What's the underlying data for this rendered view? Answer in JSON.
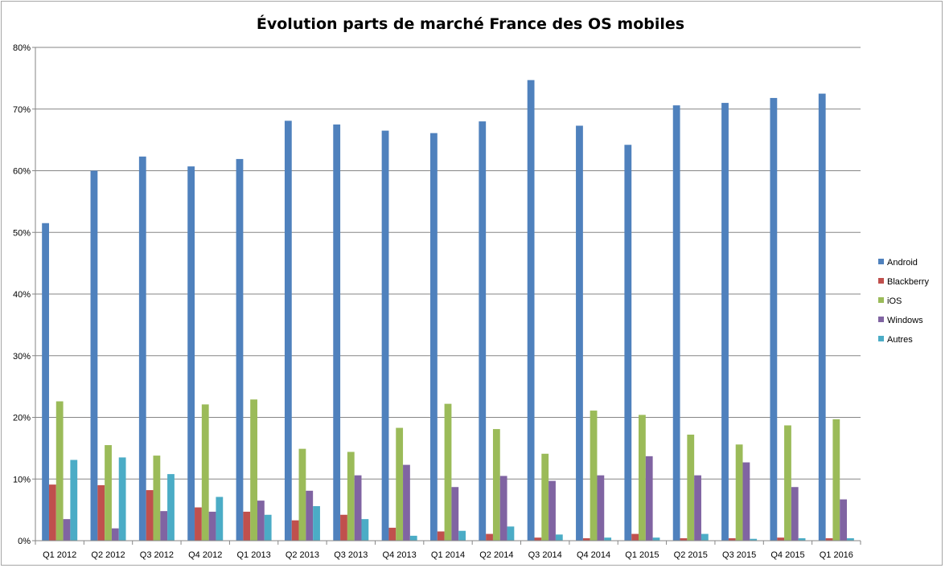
{
  "chart_data": {
    "type": "bar",
    "title": "Évolution parts de marché France des OS mobiles",
    "xlabel": "",
    "ylabel": "",
    "ylim": [
      0,
      80
    ],
    "yticks": [
      "0%",
      "10%",
      "20%",
      "30%",
      "40%",
      "50%",
      "60%",
      "70%",
      "80%"
    ],
    "grid": true,
    "legend_position": "right",
    "categories": [
      "Q1 2012",
      "Q2 2012",
      "Q3 2012",
      "Q4 2012",
      "Q1 2013",
      "Q2 2013",
      "Q3 2013",
      "Q4 2013",
      "Q1 2014",
      "Q2 2014",
      "Q3 2014",
      "Q4 2014",
      "Q1 2015",
      "Q2 2015",
      "Q3 2015",
      "Q4 2015",
      "Q1 2016"
    ],
    "series": [
      {
        "name": "Android",
        "color": "#4f81bd",
        "values": [
          51.5,
          60.0,
          62.3,
          60.7,
          61.9,
          68.1,
          67.5,
          66.5,
          66.1,
          68.0,
          74.7,
          67.3,
          64.2,
          70.6,
          71.0,
          71.8,
          72.5
        ]
      },
      {
        "name": "Blackberry",
        "color": "#c0504d",
        "values": [
          9.1,
          9.0,
          8.2,
          5.4,
          4.7,
          3.3,
          4.2,
          2.1,
          1.5,
          1.1,
          0.5,
          0.4,
          1.1,
          0.4,
          0.4,
          0.5,
          0.4
        ]
      },
      {
        "name": "iOS",
        "color": "#9bbb59",
        "values": [
          22.6,
          15.5,
          13.8,
          22.1,
          22.9,
          14.9,
          14.4,
          18.3,
          22.2,
          18.1,
          14.1,
          21.1,
          20.4,
          17.2,
          15.6,
          18.7,
          19.7
        ]
      },
      {
        "name": "Windows",
        "color": "#8064a2",
        "values": [
          3.5,
          2.0,
          4.8,
          4.7,
          6.5,
          8.1,
          10.6,
          12.3,
          8.7,
          10.5,
          9.7,
          10.6,
          13.7,
          10.6,
          12.7,
          8.7,
          6.7
        ]
      },
      {
        "name": "Autres",
        "color": "#4bacc6",
        "values": [
          13.1,
          13.5,
          10.8,
          7.1,
          4.2,
          5.6,
          3.5,
          0.8,
          1.6,
          2.3,
          1.0,
          0.5,
          0.5,
          1.1,
          0.3,
          0.4,
          0.4
        ]
      }
    ]
  }
}
